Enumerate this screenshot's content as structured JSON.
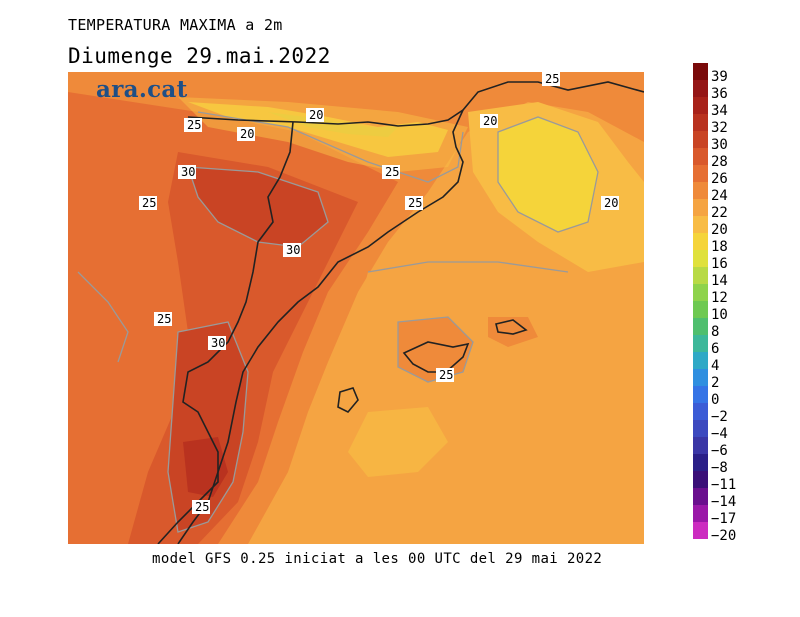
{
  "title_line1": "TEMPERATURA MAXIMA a 2m",
  "title_line2": "Diumenge  29.mai.2022",
  "footer": "model GFS 0.25 iniciat a les 00 UTC del 29 mai 2022",
  "logo": "ara.cat",
  "colorbar": {
    "labels": [
      "39",
      "36",
      "34",
      "32",
      "30",
      "28",
      "26",
      "24",
      "22",
      "20",
      "18",
      "16",
      "14",
      "12",
      "10",
      "8",
      "6",
      "4",
      "2",
      "0",
      "−2",
      "−4",
      "−6",
      "−8",
      "−11",
      "−14",
      "−17",
      "−20"
    ],
    "colors": [
      "#7a0a0a",
      "#951616",
      "#a8221a",
      "#b9321f",
      "#c94424",
      "#d9592c",
      "#e66f33",
      "#ef8a3a",
      "#f5a442",
      "#f8bc45",
      "#f5d43a",
      "#dfe13c",
      "#b8da45",
      "#8ed34b",
      "#6ec951",
      "#4fbf6e",
      "#3db89a",
      "#2fa9c6",
      "#2f8fe0",
      "#3574e6",
      "#3b5cd6",
      "#3c49bf",
      "#3a36a6",
      "#2a1f88",
      "#3a0f78",
      "#6a0f8e",
      "#9a18a8",
      "#cc2cc0"
    ]
  },
  "contour_labels": [
    {
      "text": "25"
    },
    {
      "text": "20"
    },
    {
      "text": "20"
    },
    {
      "text": "20"
    },
    {
      "text": "25"
    },
    {
      "text": "30"
    },
    {
      "text": "25"
    },
    {
      "text": "25"
    },
    {
      "text": "25"
    },
    {
      "text": "30"
    },
    {
      "text": "20"
    },
    {
      "text": "25"
    },
    {
      "text": "30"
    },
    {
      "text": "25"
    },
    {
      "text": "25"
    }
  ]
}
